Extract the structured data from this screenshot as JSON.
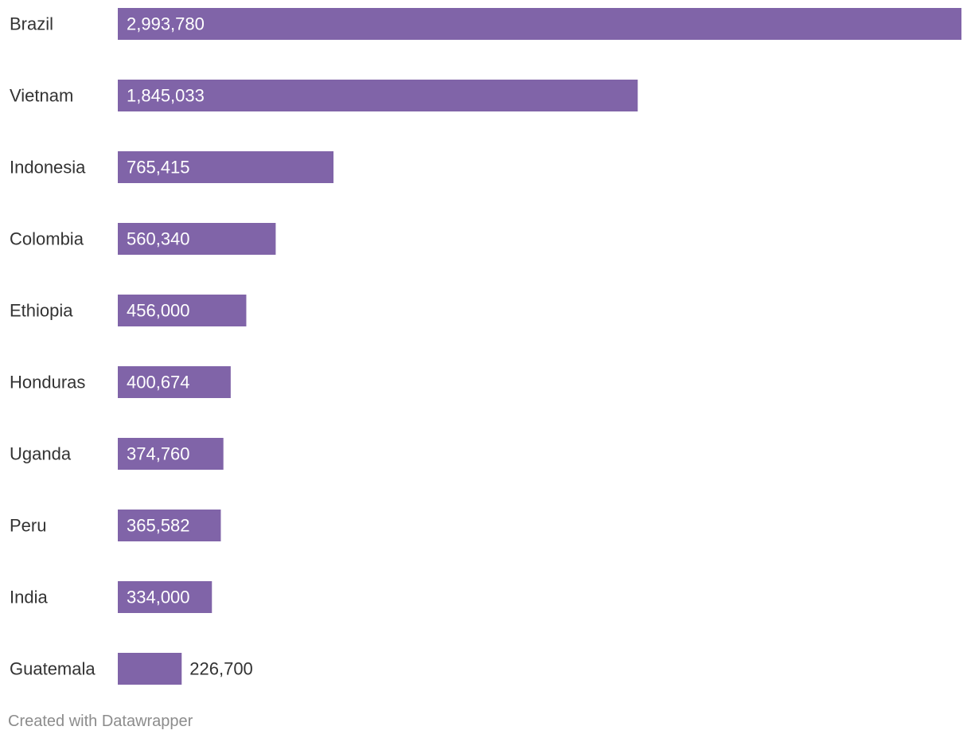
{
  "chart_data": {
    "type": "bar",
    "orientation": "horizontal",
    "title": "",
    "xlabel": "",
    "ylabel": "",
    "categories": [
      "Brazil",
      "Vietnam",
      "Indonesia",
      "Colombia",
      "Ethiopia",
      "Honduras",
      "Uganda",
      "Peru",
      "India",
      "Guatemala"
    ],
    "values": [
      2993780,
      1845033,
      765415,
      560340,
      456000,
      400674,
      374760,
      365582,
      334000,
      226700
    ],
    "value_labels": [
      "2,993,780",
      "1,845,033",
      "765,415",
      "560,340",
      "456,000",
      "400,674",
      "374,760",
      "365,582",
      "334,000",
      "226,700"
    ],
    "xlim": [
      0,
      2993780
    ],
    "grid": false,
    "bar_color": "#8064a8"
  },
  "footer": {
    "credit": "Created with Datawrapper"
  }
}
